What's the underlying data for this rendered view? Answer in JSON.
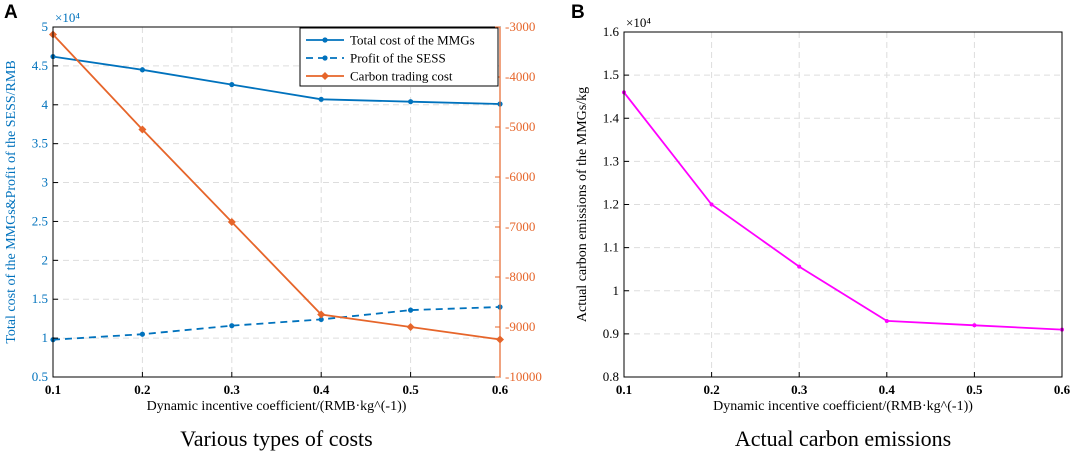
{
  "colors": {
    "blue": "#0072BD",
    "orange": "#E6652A",
    "magenta": "#FF00FF",
    "grid": "#dddddd",
    "axis": "#000000"
  },
  "chart_data": [
    {
      "panel_label": "A",
      "type": "line",
      "caption": "Various types of costs",
      "xlabel": "Dynamic incentive coefficient/(RMB·kg^(-1))",
      "ylabel_left": "Total cost of the MMGs&Profit of the SESS/RMB",
      "ylabel_right": "",
      "left_exponent": "×10⁴",
      "x": [
        0.1,
        0.2,
        0.3,
        0.4,
        0.5,
        0.6
      ],
      "x_ticks": [
        "0.1",
        "0.2",
        "0.3",
        "0.4",
        "0.5",
        "0.6"
      ],
      "xlim": [
        0.1,
        0.6
      ],
      "ylim_left": [
        0.5,
        5
      ],
      "y_ticks_left": [
        "0.5",
        "1",
        "1.5",
        "2",
        "2.5",
        "3",
        "3.5",
        "4",
        "4.5",
        "5"
      ],
      "ylim_right": [
        -10000,
        -3000
      ],
      "y_ticks_right": [
        "-3000",
        "-4000",
        "-5000",
        "-6000",
        "-7000",
        "-8000",
        "-9000",
        "-10000"
      ],
      "grid": true,
      "legend_position": "top-right",
      "series": [
        {
          "name": "Total cost of the MMGs",
          "axis": "left",
          "style": "solid",
          "marker": "dot",
          "color": "#0072BD",
          "values": [
            4.62,
            4.45,
            4.26,
            4.07,
            4.04,
            4.01
          ]
        },
        {
          "name": "Profit of the SESS",
          "axis": "left",
          "style": "dashed",
          "marker": "dot",
          "color": "#0072BD",
          "values": [
            0.98,
            1.05,
            1.16,
            1.24,
            1.36,
            1.4
          ]
        },
        {
          "name": "Carbon trading cost",
          "axis": "right",
          "style": "solid",
          "marker": "diamond",
          "color": "#E6652A",
          "values": [
            -3150,
            -5050,
            -6900,
            -8750,
            -9000,
            -9250
          ]
        }
      ]
    },
    {
      "panel_label": "B",
      "type": "line",
      "caption": "Actual carbon emissions",
      "xlabel": "Dynamic incentive coefficient/(RMB·kg^(-1))",
      "ylabel_left": "Actual carbon emissions of the MMGs/kg",
      "left_exponent": "×10⁴",
      "x": [
        0.1,
        0.2,
        0.3,
        0.4,
        0.5,
        0.6
      ],
      "x_ticks": [
        "0.1",
        "0.2",
        "0.3",
        "0.4",
        "0.5",
        "0.6"
      ],
      "xlim": [
        0.1,
        0.6
      ],
      "ylim_left": [
        0.8,
        1.6
      ],
      "y_ticks_left": [
        "0.8",
        "0.9",
        "1",
        "1.1",
        "1.2",
        "1.3",
        "1.4",
        "1.5",
        "1.6"
      ],
      "grid": true,
      "series": [
        {
          "name": "Actual carbon emissions",
          "axis": "left",
          "style": "solid",
          "marker": "dot",
          "color": "#FF00FF",
          "values": [
            1.46,
            1.2,
            1.056,
            0.93,
            0.92,
            0.91
          ]
        }
      ]
    }
  ]
}
